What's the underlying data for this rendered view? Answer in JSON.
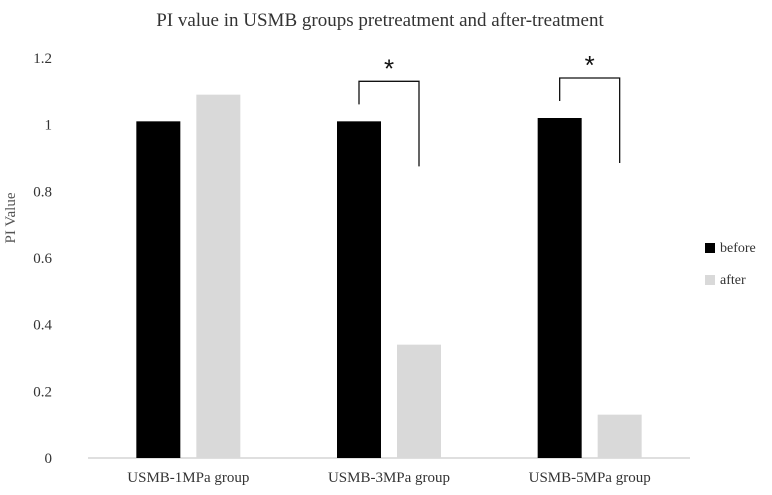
{
  "chart_data": {
    "type": "bar",
    "title": "PI value in USMB groups pretreatment and after-treatment",
    "xlabel": "",
    "ylabel": "PI Value",
    "ylim": [
      0,
      1.2
    ],
    "yticks": [
      "0",
      "0.2",
      "0.4",
      "0.6",
      "0.8",
      "1",
      "1.2"
    ],
    "categories": [
      "USMB-1MPa group",
      "USMB-3MPa group",
      "USMB-5MPa group"
    ],
    "series": [
      {
        "name": "before",
        "color": "#000000",
        "values": [
          1.01,
          1.01,
          1.02
        ]
      },
      {
        "name": "after",
        "color": "#d9d9d9",
        "values": [
          1.09,
          0.34,
          0.13
        ]
      }
    ],
    "significance": [
      {
        "category_index": 1,
        "label": "*"
      },
      {
        "category_index": 2,
        "label": "*"
      }
    ],
    "grid": false,
    "legend_position": "right"
  }
}
